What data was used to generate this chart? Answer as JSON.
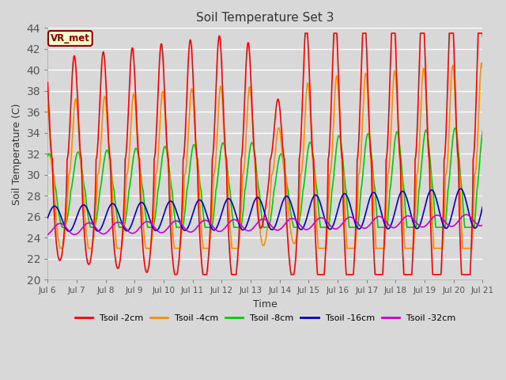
{
  "title": "Soil Temperature Set 3",
  "xlabel": "Time",
  "ylabel": "Soil Temperature (C)",
  "ylim": [
    20,
    44
  ],
  "yticks": [
    20,
    22,
    24,
    26,
    28,
    30,
    32,
    34,
    36,
    38,
    40,
    42,
    44
  ],
  "background_color": "#d8d8d8",
  "plot_bg_color": "#d8d8d8",
  "annotation": "VR_met",
  "annotation_color": "#8b0000",
  "annotation_bg": "#ffffcc",
  "series_colors": [
    "#ff0000",
    "#ff8c00",
    "#00cc00",
    "#0000cc",
    "#cc00cc"
  ],
  "legend_labels": [
    "Tsoil -2cm",
    "Tsoil -4cm",
    "Tsoil -8cm",
    "Tsoil -16cm",
    "Tsoil -32cm"
  ],
  "xstart_day": 6,
  "xend_day": 21,
  "lw": 1.2
}
